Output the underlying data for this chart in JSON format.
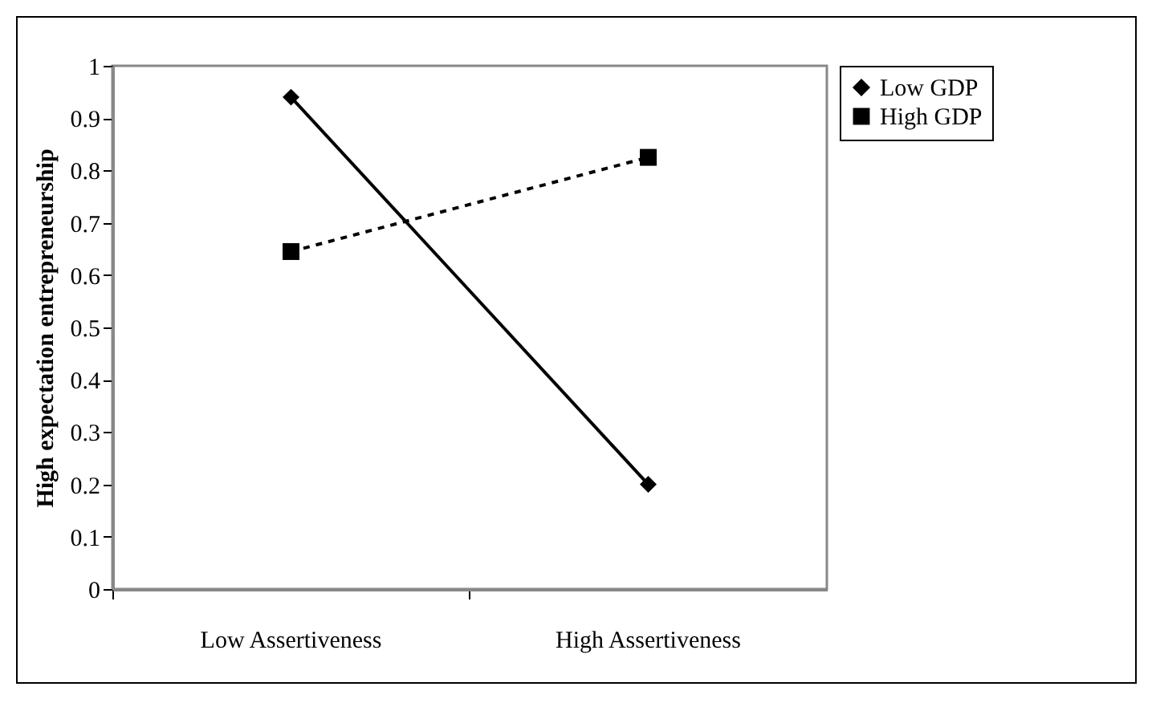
{
  "chart_data": {
    "type": "line",
    "ylabel": "High expectation entrepreneurship",
    "categories": [
      "Low Assertiveness",
      "High Assertiveness"
    ],
    "series": [
      {
        "name": "Low GDP",
        "color": "#000000",
        "values": [
          0.94,
          0.2
        ],
        "marker": "diamond",
        "line_style": "solid"
      },
      {
        "name": "High GDP",
        "color": "#000000",
        "values": [
          0.645,
          0.825
        ],
        "marker": "square",
        "line_style": "dashed"
      }
    ],
    "ylim": [
      0,
      1
    ],
    "yticks": [
      0,
      0.1,
      0.2,
      0.3,
      0.4,
      0.5,
      0.6,
      0.7,
      0.8,
      0.9,
      1
    ],
    "grid": false,
    "legend": "right"
  }
}
